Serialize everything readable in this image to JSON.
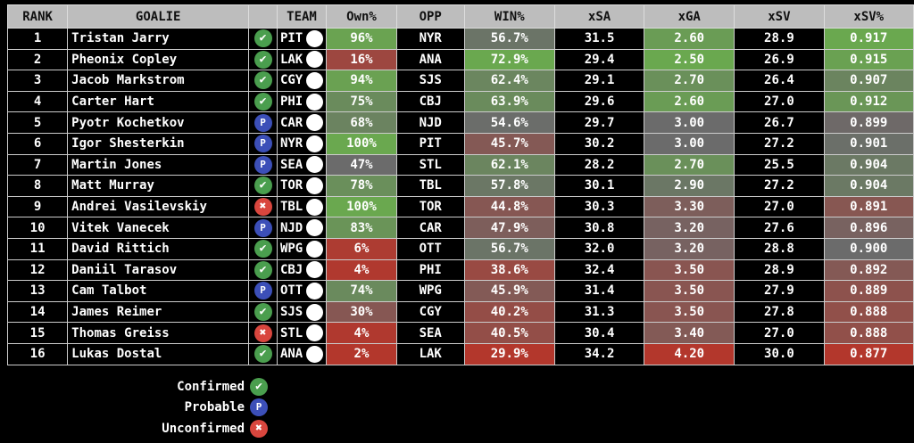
{
  "headers": [
    "RANK",
    "GOALIE",
    "",
    "TEAM",
    "Own%",
    "OPP",
    "WIN%",
    "xSA",
    "xGA",
    "xSV",
    "xSV%"
  ],
  "colors": {
    "green": "#6aa84f",
    "gray": "#6b6b6b",
    "red": "#b3372c",
    "confirmed": "#4a9e4e",
    "probable": "#3c4fb8",
    "unconfirmed": "#d9463e"
  },
  "rows": [
    [
      "1",
      "Tristan Jarry",
      "confirmed",
      "PIT",
      "96%",
      "NYR",
      "56.7%",
      "31.5",
      "2.60",
      "28.9",
      "0.917"
    ],
    [
      "2",
      "Pheonix Copley",
      "confirmed",
      "LAK",
      "16%",
      "ANA",
      "72.9%",
      "29.4",
      "2.50",
      "26.9",
      "0.915"
    ],
    [
      "3",
      "Jacob Markstrom",
      "confirmed",
      "CGY",
      "94%",
      "SJS",
      "62.4%",
      "29.1",
      "2.70",
      "26.4",
      "0.907"
    ],
    [
      "4",
      "Carter Hart",
      "confirmed",
      "PHI",
      "75%",
      "CBJ",
      "63.9%",
      "29.6",
      "2.60",
      "27.0",
      "0.912"
    ],
    [
      "5",
      "Pyotr Kochetkov",
      "probable",
      "CAR",
      "68%",
      "NJD",
      "54.6%",
      "29.7",
      "3.00",
      "26.7",
      "0.899"
    ],
    [
      "6",
      "Igor Shesterkin",
      "probable",
      "NYR",
      "100%",
      "PIT",
      "45.7%",
      "30.2",
      "3.00",
      "27.2",
      "0.901"
    ],
    [
      "7",
      "Martin Jones",
      "probable",
      "SEA",
      "47%",
      "STL",
      "62.1%",
      "28.2",
      "2.70",
      "25.5",
      "0.904"
    ],
    [
      "8",
      "Matt Murray",
      "confirmed",
      "TOR",
      "78%",
      "TBL",
      "57.8%",
      "30.1",
      "2.90",
      "27.2",
      "0.904"
    ],
    [
      "9",
      "Andrei Vasilevskiy",
      "unconfirmed",
      "TBL",
      "100%",
      "TOR",
      "44.8%",
      "30.3",
      "3.30",
      "27.0",
      "0.891"
    ],
    [
      "10",
      "Vitek Vanecek",
      "probable",
      "NJD",
      "83%",
      "CAR",
      "47.9%",
      "30.8",
      "3.20",
      "27.6",
      "0.896"
    ],
    [
      "11",
      "David Rittich",
      "confirmed",
      "WPG",
      "6%",
      "OTT",
      "56.7%",
      "32.0",
      "3.20",
      "28.8",
      "0.900"
    ],
    [
      "12",
      "Daniil Tarasov",
      "confirmed",
      "CBJ",
      "4%",
      "PHI",
      "38.6%",
      "32.4",
      "3.50",
      "28.9",
      "0.892"
    ],
    [
      "13",
      "Cam Talbot",
      "probable",
      "OTT",
      "74%",
      "WPG",
      "45.9%",
      "31.4",
      "3.50",
      "27.9",
      "0.889"
    ],
    [
      "14",
      "James Reimer",
      "confirmed",
      "SJS",
      "30%",
      "CGY",
      "40.2%",
      "31.3",
      "3.50",
      "27.8",
      "0.888"
    ],
    [
      "15",
      "Thomas Greiss",
      "unconfirmed",
      "STL",
      "4%",
      "SEA",
      "40.5%",
      "30.4",
      "3.40",
      "27.0",
      "0.888"
    ],
    [
      "16",
      "Lukas Dostal",
      "confirmed",
      "ANA",
      "2%",
      "LAK",
      "29.9%",
      "34.2",
      "4.20",
      "30.0",
      "0.877"
    ]
  ],
  "status_icons": {
    "confirmed": "✔",
    "probable": "P",
    "unconfirmed": "✖"
  },
  "legend": [
    {
      "label": "Confirmed",
      "status": "confirmed"
    },
    {
      "label": "Probable",
      "status": "probable"
    },
    {
      "label": "Unconfirmed",
      "status": "unconfirmed"
    }
  ]
}
